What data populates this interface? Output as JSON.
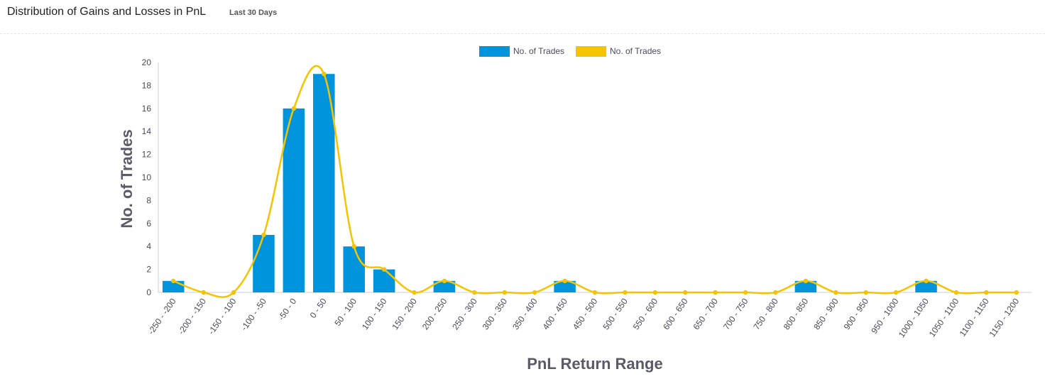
{
  "header": {
    "title": "Distribution of Gains and Losses in PnL",
    "subtitle": "Last 30 Days"
  },
  "colors": {
    "bar": "#0094dc",
    "line": "#f4c400",
    "axis": "#cfcfcf",
    "text": "#4a4a5a"
  },
  "chart_data": {
    "type": "bar",
    "xlabel": "PnL Return Range",
    "ylabel": "No. of Trades",
    "ylim": [
      0,
      20
    ],
    "yticks": [
      0,
      2,
      4,
      6,
      8,
      10,
      12,
      14,
      16,
      18,
      20
    ],
    "legend_position": "top-center",
    "categories": [
      "-250 - -200",
      "-200 - -150",
      "-150 - -100",
      "-100 - -50",
      "-50 - 0",
      "0 - 50",
      "50 - 100",
      "100 - 150",
      "150 - 200",
      "200 - 250",
      "250 - 300",
      "300 - 350",
      "350 - 400",
      "400 - 450",
      "450 - 500",
      "500 - 550",
      "550 - 600",
      "600 - 650",
      "650 - 700",
      "700 - 750",
      "750 - 800",
      "800 - 850",
      "850 - 900",
      "900 - 950",
      "950 - 1000",
      "1000 - 1050",
      "1050 - 1100",
      "1100 - 1150",
      "1150 - 1200"
    ],
    "series": [
      {
        "name": "No. of Trades",
        "kind": "bar",
        "values": [
          1,
          0,
          0,
          5,
          16,
          19,
          4,
          2,
          0,
          1,
          0,
          0,
          0,
          1,
          0,
          0,
          0,
          0,
          0,
          0,
          0,
          1,
          0,
          0,
          0,
          1,
          0,
          0,
          0
        ]
      },
      {
        "name": "No. of Trades",
        "kind": "spline",
        "values": [
          1,
          0,
          0,
          5,
          16,
          19,
          4,
          2,
          0,
          1,
          0,
          0,
          0,
          1,
          0,
          0,
          0,
          0,
          0,
          0,
          0,
          1,
          0,
          0,
          0,
          1,
          0,
          0,
          0
        ]
      }
    ]
  }
}
